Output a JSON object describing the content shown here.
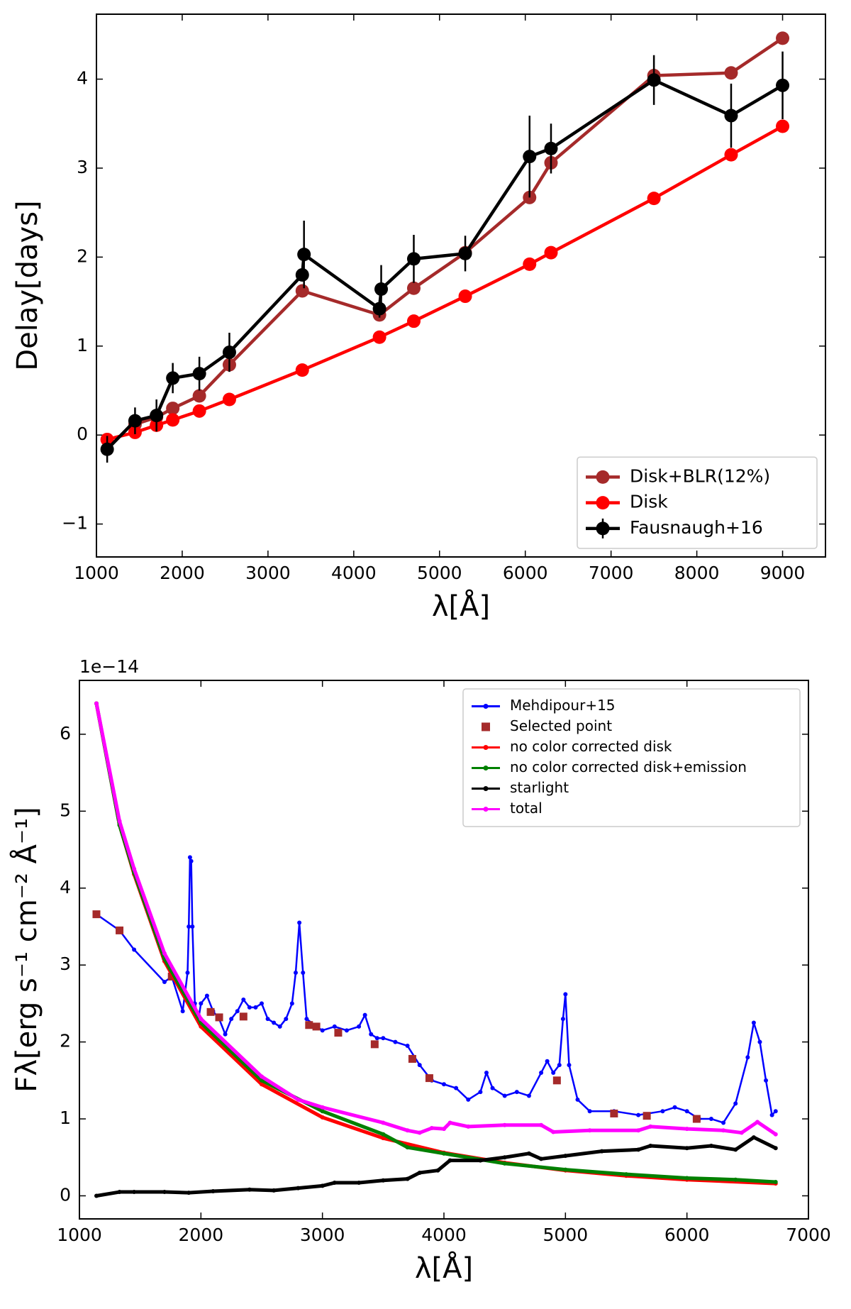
{
  "chart_data": [
    {
      "type": "line",
      "x_label": "λ[Å]",
      "y_label": "Delay[days]",
      "xlim": [
        1000,
        9500
      ],
      "ylim": [
        -1.37,
        4.73
      ],
      "xticks": [
        1000,
        2000,
        3000,
        4000,
        5000,
        6000,
        7000,
        8000,
        9000
      ],
      "yticks": [
        {
          "value": -1,
          "label": "−1"
        },
        0,
        1,
        2,
        3,
        4
      ],
      "legend": "lower right",
      "series": [
        {
          "name": "Disk+BLR(12%)",
          "color": "#a52a2a",
          "marker": "circle",
          "line": true,
          "x": [
            1450,
            1700,
            1890,
            2200,
            2550,
            3400,
            4300,
            4700,
            5300,
            6050,
            6300,
            7500,
            8400,
            9000
          ],
          "values": [
            0.12,
            0.2,
            0.3,
            0.44,
            0.79,
            1.62,
            1.35,
            1.65,
            2.05,
            2.67,
            3.06,
            4.04,
            4.07,
            4.46
          ]
        },
        {
          "name": "Disk",
          "color": "#ff0000",
          "marker": "circle",
          "line": true,
          "x": [
            1125,
            1450,
            1700,
            1890,
            2200,
            2550,
            3400,
            4300,
            4700,
            5300,
            6050,
            6300,
            7500,
            8400,
            9000
          ],
          "values": [
            -0.05,
            0.03,
            0.11,
            0.17,
            0.27,
            0.4,
            0.73,
            1.1,
            1.28,
            1.56,
            1.92,
            2.05,
            2.66,
            3.15,
            3.47
          ]
        },
        {
          "name": "Fausnaugh+16",
          "color": "#000000",
          "marker": "circle",
          "line": true,
          "x": [
            1125,
            1450,
            1700,
            1890,
            2200,
            2550,
            3400,
            3420,
            4300,
            4320,
            4700,
            5300,
            6050,
            6300,
            7500,
            8400,
            9000
          ],
          "values": [
            -0.16,
            0.16,
            0.22,
            0.64,
            0.69,
            0.93,
            1.8,
            2.03,
            1.42,
            1.64,
            1.98,
            2.04,
            3.13,
            3.22,
            3.99,
            3.59,
            3.93
          ],
          "errors": [
            0.15,
            0.15,
            0.18,
            0.17,
            0.19,
            0.22,
            0.0,
            0.38,
            0.1,
            0.27,
            0.27,
            0.2,
            0.46,
            0.28,
            0.28,
            0.36,
            0.38
          ]
        }
      ]
    },
    {
      "type": "line",
      "x_label": "λ[Å]",
      "y_label": "Fλ[erg s⁻¹ cm⁻² Å⁻¹]",
      "offset_label": "1e−14",
      "xlim": [
        1000,
        7000
      ],
      "ylim": [
        -0.3,
        6.7
      ],
      "xticks": [
        1000,
        2000,
        3000,
        4000,
        5000,
        6000,
        7000
      ],
      "yticks": [
        0,
        1,
        2,
        3,
        4,
        5,
        6
      ],
      "legend": "upper right",
      "series": [
        {
          "name": "Mehdipour+15",
          "color": "#0000ff",
          "marker": "dot",
          "line": true,
          "x": [
            1140,
            1330,
            1450,
            1700,
            1760,
            1850,
            1890,
            1900,
            1910,
            1920,
            1930,
            1950,
            1980,
            2000,
            2050,
            2100,
            2150,
            2200,
            2250,
            2300,
            2350,
            2400,
            2450,
            2500,
            2550,
            2600,
            2650,
            2700,
            2750,
            2780,
            2810,
            2840,
            2870,
            2950,
            3000,
            3100,
            3200,
            3300,
            3350,
            3400,
            3450,
            3500,
            3600,
            3700,
            3800,
            3900,
            4000,
            4100,
            4200,
            4300,
            4350,
            4400,
            4500,
            4600,
            4700,
            4800,
            4850,
            4900,
            4950,
            4980,
            5000,
            5030,
            5100,
            5200,
            5400,
            5600,
            5800,
            5900,
            6000,
            6100,
            6200,
            6300,
            6400,
            6500,
            6550,
            6600,
            6650,
            6700,
            6730
          ],
          "values": [
            3.66,
            3.45,
            3.2,
            2.78,
            2.85,
            2.4,
            2.9,
            3.5,
            4.4,
            4.35,
            3.5,
            2.5,
            2.3,
            2.5,
            2.6,
            2.4,
            2.3,
            2.1,
            2.3,
            2.4,
            2.55,
            2.45,
            2.45,
            2.5,
            2.3,
            2.25,
            2.2,
            2.3,
            2.5,
            2.9,
            3.55,
            2.9,
            2.3,
            2.2,
            2.15,
            2.2,
            2.15,
            2.2,
            2.35,
            2.1,
            2.05,
            2.05,
            2.0,
            1.95,
            1.7,
            1.5,
            1.45,
            1.4,
            1.25,
            1.35,
            1.6,
            1.4,
            1.3,
            1.35,
            1.3,
            1.6,
            1.75,
            1.6,
            1.7,
            2.3,
            2.62,
            1.7,
            1.25,
            1.1,
            1.1,
            1.05,
            1.1,
            1.15,
            1.1,
            1.0,
            1.0,
            0.95,
            1.2,
            1.8,
            2.25,
            2.0,
            1.5,
            1.05,
            1.1
          ]
        },
        {
          "name": "Selected point",
          "color": "#a52a2a",
          "marker": "square",
          "line": false,
          "x": [
            1140,
            1330,
            1760,
            2080,
            2150,
            2350,
            2890,
            2950,
            3130,
            3430,
            3740,
            3880,
            4930,
            5400,
            5670,
            6080
          ],
          "values": [
            3.66,
            3.45,
            2.85,
            2.39,
            2.32,
            2.33,
            2.22,
            2.2,
            2.12,
            1.97,
            1.78,
            1.53,
            1.5,
            1.07,
            1.04,
            1.0
          ]
        },
        {
          "name": "no color corrected disk",
          "color": "#ff0000",
          "marker": "dot",
          "line": true,
          "x": [
            1140,
            1330,
            1450,
            1700,
            2000,
            2500,
            3000,
            3500,
            4000,
            4500,
            5000,
            5500,
            6000,
            6730
          ],
          "values": [
            6.4,
            4.82,
            4.18,
            3.05,
            2.2,
            1.45,
            1.02,
            0.75,
            0.56,
            0.43,
            0.33,
            0.26,
            0.21,
            0.16
          ]
        },
        {
          "name": "no color corrected disk+emission",
          "color": "#008000",
          "marker": "dot",
          "line": true,
          "x": [
            1140,
            1330,
            1450,
            1700,
            2000,
            2500,
            3000,
            3500,
            3700,
            4000,
            4500,
            5000,
            5500,
            6000,
            6400,
            6730
          ],
          "values": [
            6.4,
            4.82,
            4.2,
            3.08,
            2.25,
            1.5,
            1.1,
            0.8,
            0.63,
            0.55,
            0.42,
            0.34,
            0.28,
            0.23,
            0.21,
            0.18
          ]
        },
        {
          "name": "starlight",
          "color": "#000000",
          "marker": "dot",
          "line": true,
          "x": [
            1140,
            1330,
            1450,
            1700,
            1900,
            2100,
            2400,
            2600,
            2800,
            3000,
            3100,
            3300,
            3500,
            3700,
            3800,
            3950,
            4050,
            4300,
            4500,
            4700,
            4800,
            5000,
            5300,
            5600,
            5700,
            6000,
            6200,
            6400,
            6550,
            6730
          ],
          "values": [
            0.0,
            0.05,
            0.05,
            0.05,
            0.04,
            0.06,
            0.08,
            0.07,
            0.1,
            0.13,
            0.17,
            0.17,
            0.2,
            0.22,
            0.3,
            0.33,
            0.46,
            0.46,
            0.5,
            0.55,
            0.48,
            0.52,
            0.58,
            0.6,
            0.65,
            0.62,
            0.65,
            0.6,
            0.76,
            0.62
          ]
        },
        {
          "name": "total",
          "color": "#ff00ff",
          "marker": "dot",
          "line": true,
          "x": [
            1140,
            1330,
            1450,
            1700,
            2000,
            2500,
            2800,
            3000,
            3500,
            3700,
            3800,
            3900,
            4000,
            4050,
            4200,
            4500,
            4800,
            4900,
            5200,
            5600,
            5700,
            6000,
            6300,
            6450,
            6580,
            6730
          ],
          "values": [
            6.4,
            4.87,
            4.25,
            3.15,
            2.3,
            1.55,
            1.25,
            1.15,
            0.95,
            0.85,
            0.82,
            0.88,
            0.87,
            0.95,
            0.9,
            0.92,
            0.92,
            0.83,
            0.85,
            0.85,
            0.9,
            0.87,
            0.85,
            0.82,
            0.96,
            0.8
          ]
        }
      ]
    }
  ]
}
